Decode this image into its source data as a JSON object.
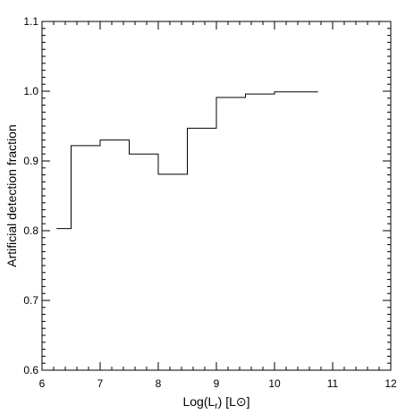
{
  "chart_data": {
    "type": "line",
    "step": true,
    "xlabel": {
      "main": "Log(L",
      "sub": "r",
      "suffix": ") [L",
      "symbol": "⊙",
      "close": "]"
    },
    "ylabel": "Artificial detection fraction",
    "xlim": [
      6,
      12
    ],
    "ylim": [
      0.6,
      1.1
    ],
    "xticks": [
      6,
      7,
      8,
      9,
      10,
      11,
      12
    ],
    "yticks": [
      0.6,
      0.7,
      0.8,
      0.9,
      1.0,
      1.1
    ],
    "xtick_labels": [
      "6",
      "7",
      "8",
      "9",
      "10",
      "11",
      "12"
    ],
    "ytick_labels": [
      "0.6",
      "0.7",
      "0.8",
      "0.9",
      "1.0",
      "1.1"
    ],
    "x_minor_step": 0.2,
    "y_minor_step": 0.01,
    "grid": false,
    "bins": [
      {
        "x0": 6.25,
        "x1": 6.5,
        "y": 0.803
      },
      {
        "x0": 6.5,
        "x1": 7.0,
        "y": 0.922
      },
      {
        "x0": 7.0,
        "x1": 7.5,
        "y": 0.93
      },
      {
        "x0": 7.5,
        "x1": 8.0,
        "y": 0.91
      },
      {
        "x0": 8.0,
        "x1": 8.5,
        "y": 0.881
      },
      {
        "x0": 8.5,
        "x1": 9.0,
        "y": 0.947
      },
      {
        "x0": 9.0,
        "x1": 9.5,
        "y": 0.991
      },
      {
        "x0": 9.5,
        "x1": 10.0,
        "y": 0.996
      },
      {
        "x0": 10.0,
        "x1": 10.75,
        "y": 0.999
      }
    ]
  }
}
